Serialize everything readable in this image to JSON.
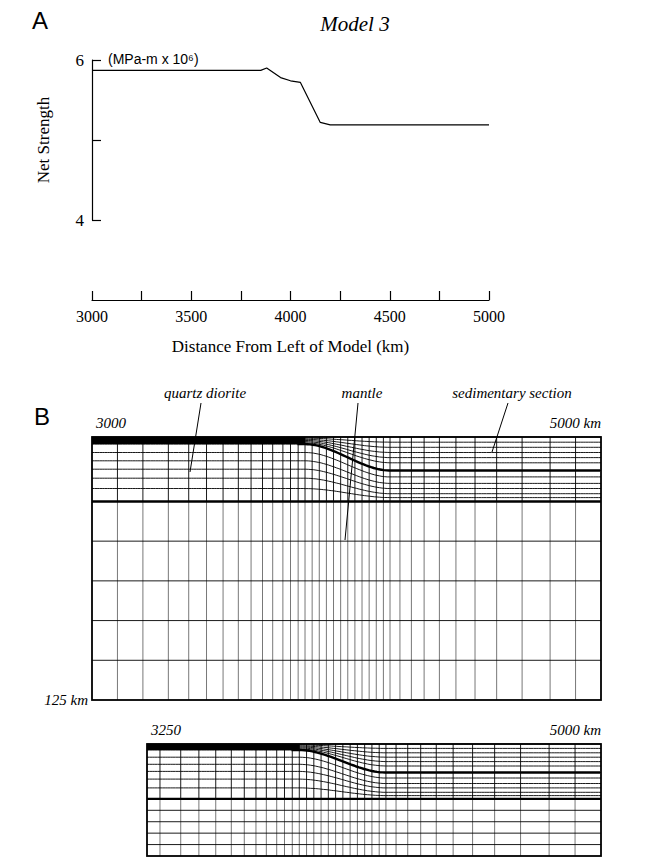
{
  "chart_data": {
    "type": "line",
    "panel": "A",
    "title": "Model 3",
    "y_label": "Net Strength",
    "y_units": "(MPa-m x 10⁶)",
    "x_label": "Distance From Left of Model (km)",
    "x": [
      3000,
      3850,
      3880,
      3950,
      4000,
      4050,
      4150,
      4200,
      5000
    ],
    "values": [
      5.87,
      5.87,
      5.9,
      5.78,
      5.74,
      5.72,
      5.22,
      5.19,
      5.19
    ],
    "color": "#000000",
    "xlim": [
      3000,
      5000
    ],
    "xticks": [
      3000,
      3500,
      4000,
      4500,
      5000
    ],
    "xminor_ticks": [
      3250,
      3750,
      4250,
      4750
    ],
    "ylim": [
      4,
      6
    ],
    "yticks": [
      4,
      6
    ],
    "yminor_ticks": [
      5
    ],
    "grid": false
  },
  "diagram": {
    "panel": "B",
    "labels": [
      "quartz diorite",
      "mantle",
      "sedimentary section"
    ],
    "meshes": [
      {
        "x_start": 3000,
        "x_end": {
          "value": 5000,
          "label": "5000 km"
        },
        "depth": {
          "value": 125,
          "label": "125 km"
        }
      },
      {
        "x_start": 3250,
        "x_end": {
          "value": 5000,
          "label": "5000 km"
        }
      }
    ]
  }
}
